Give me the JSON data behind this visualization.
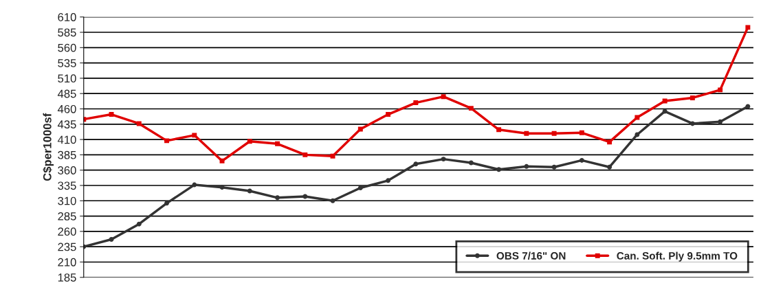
{
  "chart_data": {
    "type": "line",
    "ylabel": "C$per1000sf",
    "categories": [
      null,
      null,
      null,
      null,
      null,
      null,
      null,
      null,
      null,
      null,
      null,
      null,
      null,
      null,
      null,
      null,
      null,
      null,
      null,
      null,
      null,
      null,
      null,
      null,
      null
    ],
    "series": [
      {
        "name": "OBS 7/16\" ON",
        "color": "#333333",
        "marker": "circle",
        "values": [
          235,
          247,
          272,
          306,
          336,
          332,
          326,
          315,
          317,
          310,
          331,
          343,
          370,
          378,
          372,
          361,
          366,
          365,
          376,
          365,
          418,
          456,
          436,
          439,
          464
        ]
      },
      {
        "name": "Can. Soft. Ply 9.5mm TO",
        "color": "#e00000",
        "marker": "square",
        "values": [
          443,
          451,
          436,
          408,
          417,
          375,
          407,
          403,
          385,
          383,
          427,
          451,
          470,
          480,
          461,
          426,
          420,
          420,
          421,
          406,
          446,
          473,
          478,
          491,
          593
        ]
      }
    ],
    "ylim": [
      185,
      610
    ],
    "yticks": [
      185,
      210,
      235,
      260,
      285,
      310,
      335,
      360,
      385,
      410,
      435,
      460,
      485,
      510,
      535,
      560,
      585,
      610
    ],
    "grid": "y",
    "legend": "bottom right",
    "line_style": "solid"
  }
}
